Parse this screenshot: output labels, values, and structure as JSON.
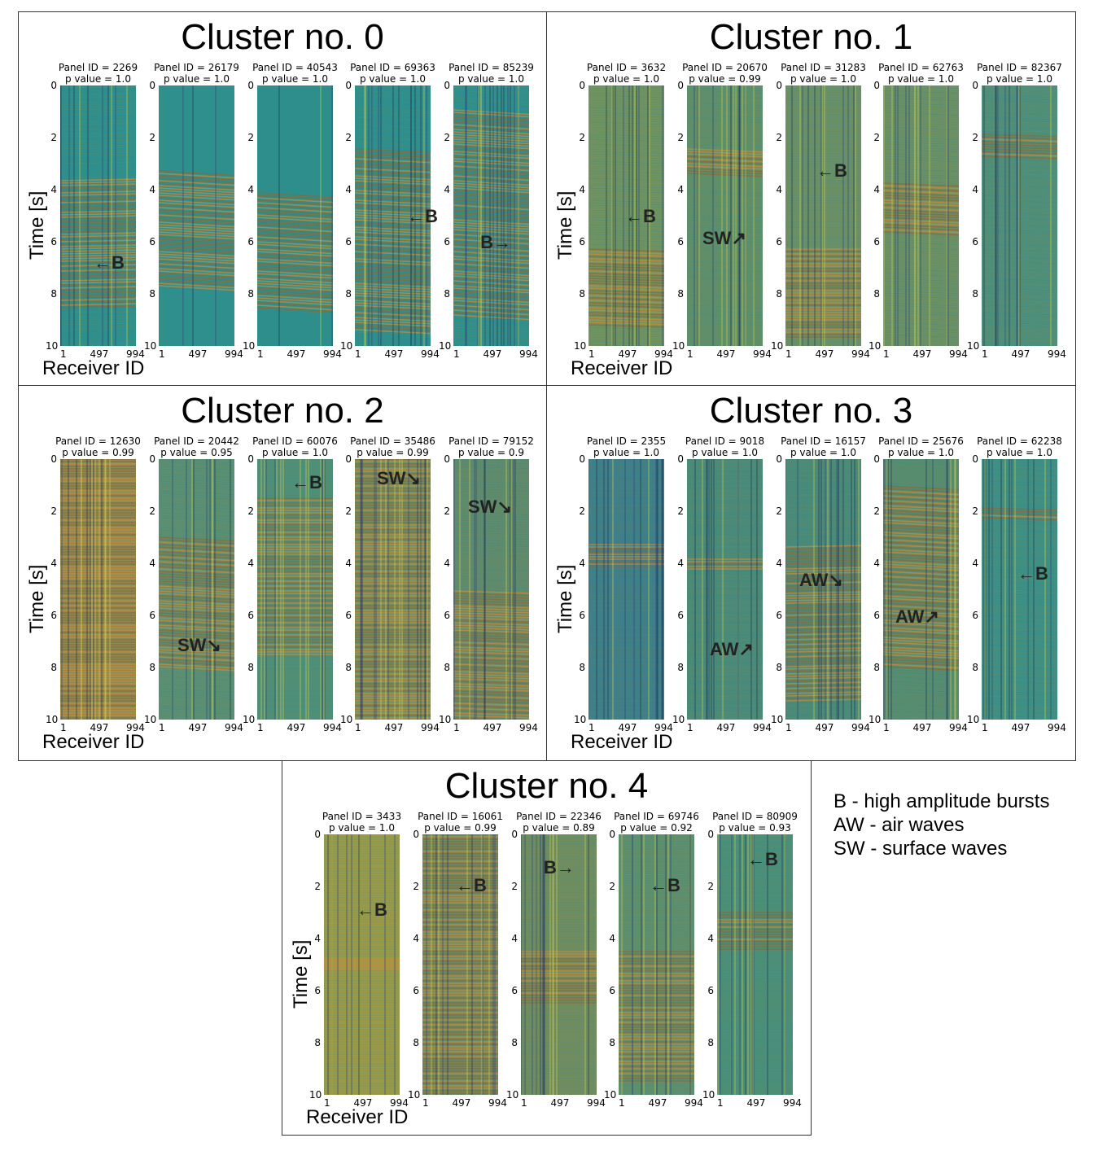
{
  "colors": {
    "background": "#2e8f8c",
    "warm": "#c98a3a",
    "dark": "#2a3f7a",
    "yellow": "#d8d84a"
  },
  "labels": {
    "time_axis": "Time [s]",
    "receiver_axis": "Receiver ID"
  },
  "legend": {
    "items": [
      "B - high amplitude bursts",
      "AW - air waves",
      "SW - surface waves"
    ]
  },
  "yticks": [
    "0",
    "2",
    "4",
    "6",
    "8",
    "10"
  ],
  "xticks": [
    "1",
    "497",
    "994"
  ],
  "clusters": [
    {
      "title": "Cluster no. 0",
      "panels": [
        {
          "id": "Panel ID = 2269",
          "p": "p value = 1.0"
        },
        {
          "id": "Panel ID = 26179",
          "p": "p value = 1.0"
        },
        {
          "id": "Panel ID = 40543",
          "p": "p value = 1.0"
        },
        {
          "id": "Panel ID = 69363",
          "p": "p value = 1.0"
        },
        {
          "id": "Panel ID = 85239",
          "p": "p value = 1.0"
        }
      ],
      "annotations": [
        "B",
        "B",
        "B"
      ]
    },
    {
      "title": "Cluster no. 1",
      "panels": [
        {
          "id": "Panel ID = 3632",
          "p": "p value = 1.0"
        },
        {
          "id": "Panel ID = 20670",
          "p": "p value = 0.99"
        },
        {
          "id": "Panel ID = 31283",
          "p": "p value = 1.0"
        },
        {
          "id": "Panel ID = 62763",
          "p": "p value = 1.0"
        },
        {
          "id": "Panel ID = 82367",
          "p": "p value = 1.0"
        }
      ],
      "annotations": [
        "B",
        "SW",
        "B"
      ]
    },
    {
      "title": "Cluster no. 2",
      "panels": [
        {
          "id": "Panel ID = 12630",
          "p": "p value = 0.99"
        },
        {
          "id": "Panel ID = 20442",
          "p": "p value = 0.95"
        },
        {
          "id": "Panel ID = 60076",
          "p": "p value = 1.0"
        },
        {
          "id": "Panel ID = 35486",
          "p": "p value = 0.99"
        },
        {
          "id": "Panel ID = 79152",
          "p": "p value = 0.9"
        }
      ],
      "annotations": [
        "SW",
        "B",
        "SW",
        "SW"
      ]
    },
    {
      "title": "Cluster no. 3",
      "panels": [
        {
          "id": "Panel ID = 2355",
          "p": "p value = 1.0"
        },
        {
          "id": "Panel ID = 9018",
          "p": "p value = 1.0"
        },
        {
          "id": "Panel ID = 16157",
          "p": "p value = 1.0"
        },
        {
          "id": "Panel ID = 25676",
          "p": "p value = 1.0"
        },
        {
          "id": "Panel ID = 62238",
          "p": "p value = 1.0"
        }
      ],
      "annotations": [
        "AW",
        "AW",
        "AW",
        "B"
      ]
    },
    {
      "title": "Cluster no. 4",
      "panels": [
        {
          "id": "Panel ID = 3433",
          "p": "p value = 1.0"
        },
        {
          "id": "Panel ID = 16061",
          "p": "p value = 0.99"
        },
        {
          "id": "Panel ID = 22346",
          "p": "p value = 0.89"
        },
        {
          "id": "Panel ID = 69746",
          "p": "p value = 0.92"
        },
        {
          "id": "Panel ID = 80909",
          "p": "p value = 0.93"
        }
      ],
      "annotations": [
        "B",
        "B",
        "B",
        "B",
        "B"
      ]
    }
  ]
}
